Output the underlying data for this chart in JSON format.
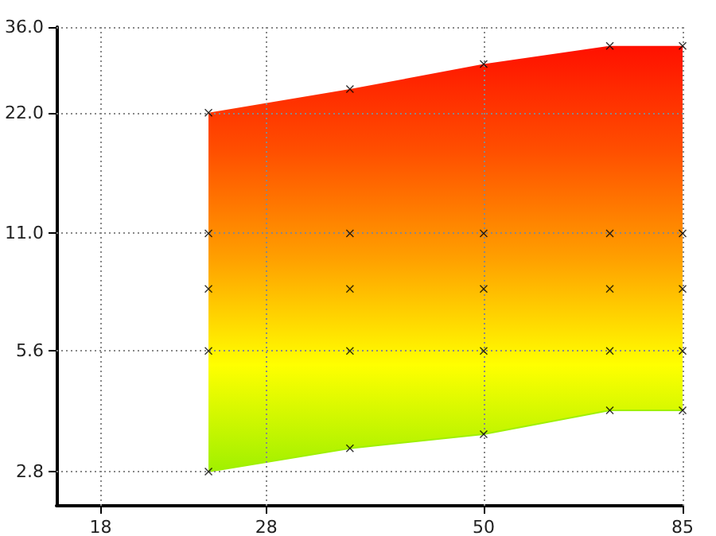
{
  "chart_data": {
    "type": "scatter",
    "log": "xy",
    "grid": true,
    "xlim": [
      16,
      85
    ],
    "ylim": [
      2.3,
      36
    ],
    "xticks": [
      18,
      28,
      50,
      85
    ],
    "yticks": [
      {
        "value": 2.8,
        "label": "2.8"
      },
      {
        "value": 5.6,
        "label": "5.6"
      },
      {
        "value": 11,
        "label": "11.0"
      },
      {
        "value": 22,
        "label": "22.0"
      },
      {
        "value": 36,
        "label": "36.0"
      }
    ],
    "series": [
      {
        "type": "area",
        "x": [
          24,
          35,
          50,
          70,
          85
        ],
        "values": [
          22,
          25.2,
          29.1,
          32.3,
          32.3
        ],
        "colors": [
          "#ff1000",
          "#ff5000",
          "#ffa000",
          "#ffff00",
          "#a0f000"
        ]
      },
      {
        "type": "line",
        "x": [
          24,
          35,
          50,
          70,
          85
        ],
        "values": [
          2.8,
          3.2,
          3.47,
          3.98,
          3.98
        ],
        "color": "#a0f000"
      },
      {
        "marker": "cross",
        "color": "#000000",
        "x": [
          24,
          24,
          24,
          24,
          24,
          35,
          35,
          35,
          35,
          35,
          50,
          50,
          50,
          50,
          50,
          70,
          70,
          70,
          70,
          70,
          85,
          85,
          85,
          85,
          85
        ],
        "values": [
          2.8,
          5.6,
          8,
          11,
          22,
          3.2,
          5.6,
          8,
          11,
          25.2,
          3.47,
          5.6,
          8,
          11,
          29.1,
          3.98,
          5.6,
          8,
          11,
          32.3,
          3.98,
          5.6,
          8,
          11,
          32.3
        ]
      }
    ]
  }
}
